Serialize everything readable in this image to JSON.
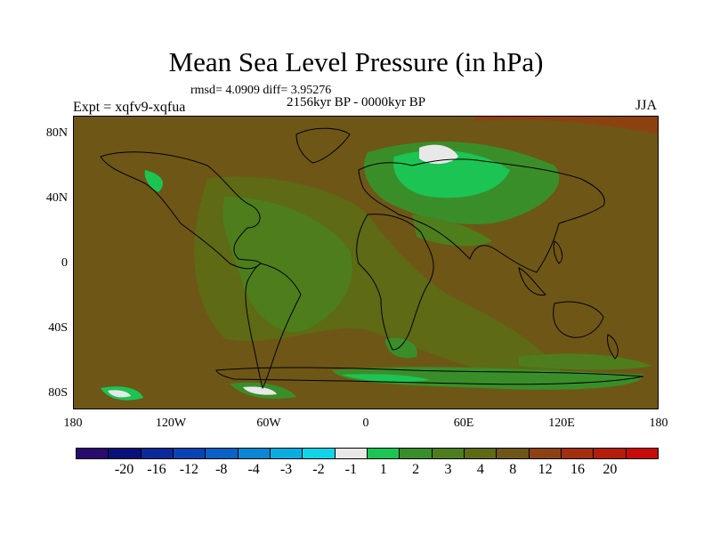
{
  "title": "Mean Sea Level Pressure (in hPa)",
  "stats": "rmsd= 4.0909 diff= 3.95276",
  "period": "2156kyr BP - 0000kyr BP",
  "experiment": "Expt = xqfv9-xqfua",
  "season": "JJA",
  "y_ticks": [
    "80N",
    "40N",
    "0",
    "40S",
    "80S"
  ],
  "x_ticks": [
    "180",
    "120W",
    "60W",
    "0",
    "60E",
    "120E",
    "180"
  ],
  "colorbar": {
    "colors": [
      "#2a0a6e",
      "#0a107a",
      "#0a2a9a",
      "#0a44b4",
      "#0a62c6",
      "#0a86d2",
      "#08aee0",
      "#12d4e8",
      "#e8e8e8",
      "#1cc454",
      "#3a8e2a",
      "#4e7e1c",
      "#5e6a14",
      "#6e5616",
      "#8c4210",
      "#a2300c",
      "#b41e08",
      "#c80a0a"
    ],
    "labels": [
      "-20",
      "-16",
      "-12",
      "-8",
      "-4",
      "-3",
      "-2",
      "-1",
      "1",
      "2",
      "3",
      "4",
      "8",
      "12",
      "16",
      "20"
    ]
  },
  "field_colors": {
    "background": "#6e5616",
    "ocean_band": "#5e6a14",
    "land_band": "#4e7e1c",
    "green": "#3a8e2a",
    "bright_green": "#1cc454",
    "white": "#e8e8e8",
    "red": "#8c4210"
  }
}
